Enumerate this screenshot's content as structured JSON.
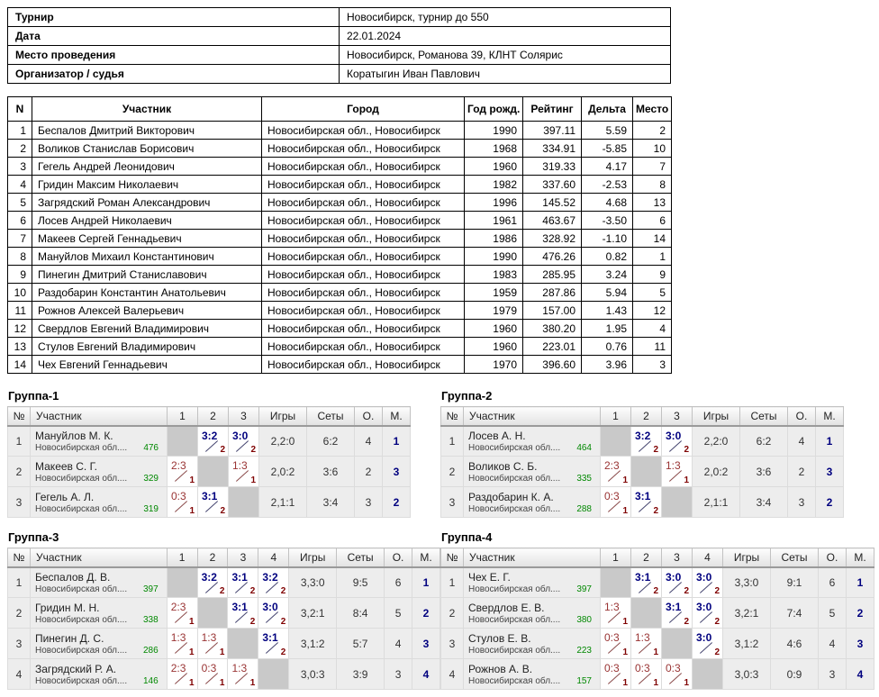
{
  "info": {
    "rows": [
      {
        "label": "Турнир",
        "value": "Новосибирск, турнир до 550"
      },
      {
        "label": "Дата",
        "value": "22.01.2024"
      },
      {
        "label": "Место проведения",
        "value": "Новосибирск, Романова 39, КЛНТ Солярис"
      },
      {
        "label": "Организатор / судья",
        "value": "Коратыгин Иван Павлович"
      }
    ]
  },
  "participants": {
    "headers": [
      "N",
      "Участник",
      "Город",
      "Год рожд.",
      "Рейтинг",
      "Дельта",
      "Место"
    ],
    "rows": [
      {
        "n": "1",
        "name": "Беспалов Дмитрий Викторович",
        "city": "Новосибирская обл., Новосибирск",
        "year": "1990",
        "rating": "397.11",
        "delta": "5.59",
        "place": "2"
      },
      {
        "n": "2",
        "name": "Воликов Станислав Борисович",
        "city": "Новосибирская обл., Новосибирск",
        "year": "1968",
        "rating": "334.91",
        "delta": "-5.85",
        "place": "10"
      },
      {
        "n": "3",
        "name": "Гегель Андрей Леонидович",
        "city": "Новосибирская обл., Новосибирск",
        "year": "1960",
        "rating": "319.33",
        "delta": "4.17",
        "place": "7"
      },
      {
        "n": "4",
        "name": "Гридин Максим Николаевич",
        "city": "Новосибирская обл., Новосибирск",
        "year": "1982",
        "rating": "337.60",
        "delta": "-2.53",
        "place": "8"
      },
      {
        "n": "5",
        "name": "Загрядский Роман Александрович",
        "city": "Новосибирская обл., Новосибирск",
        "year": "1996",
        "rating": "145.52",
        "delta": "4.68",
        "place": "13"
      },
      {
        "n": "6",
        "name": "Лосев Андрей Николаевич",
        "city": "Новосибирская обл., Новосибирск",
        "year": "1961",
        "rating": "463.67",
        "delta": "-3.50",
        "place": "6"
      },
      {
        "n": "7",
        "name": "Макеев Сергей Геннадьевич",
        "city": "Новосибирская обл., Новосибирск",
        "year": "1986",
        "rating": "328.92",
        "delta": "-1.10",
        "place": "14"
      },
      {
        "n": "8",
        "name": "Мануйлов Михаил Константинович",
        "city": "Новосибирская обл., Новосибирск",
        "year": "1990",
        "rating": "476.26",
        "delta": "0.82",
        "place": "1"
      },
      {
        "n": "9",
        "name": "Пинегин Дмитрий Станиславович",
        "city": "Новосибирская обл., Новосибирск",
        "year": "1983",
        "rating": "285.95",
        "delta": "3.24",
        "place": "9"
      },
      {
        "n": "10",
        "name": "Раздобарин Константин Анатольевич",
        "city": "Новосибирская обл., Новосибирск",
        "year": "1959",
        "rating": "287.86",
        "delta": "5.94",
        "place": "5"
      },
      {
        "n": "11",
        "name": "Рожнов Алексей Валерьевич",
        "city": "Новосибирская обл., Новосибирск",
        "year": "1979",
        "rating": "157.00",
        "delta": "1.43",
        "place": "12"
      },
      {
        "n": "12",
        "name": "Свердлов Евгений Владимирович",
        "city": "Новосибирская обл., Новосибирск",
        "year": "1960",
        "rating": "380.20",
        "delta": "1.95",
        "place": "4"
      },
      {
        "n": "13",
        "name": "Стулов Евгений Владимирович",
        "city": "Новосибирская обл., Новосибирск",
        "year": "1960",
        "rating": "223.01",
        "delta": "0.76",
        "place": "11"
      },
      {
        "n": "14",
        "name": "Чех Евгений Геннадьевич",
        "city": "Новосибирская обл., Новосибирск",
        "year": "1970",
        "rating": "396.60",
        "delta": "3.96",
        "place": "3"
      }
    ]
  },
  "group_headers": {
    "num": "№",
    "participant": "Участник",
    "games": "Игры",
    "sets": "Сеты",
    "points": "О.",
    "place": "М."
  },
  "groups": [
    {
      "title": "Группа-1",
      "rounds": [
        "1",
        "2",
        "3"
      ],
      "rows": [
        {
          "n": "1",
          "name": "Мануйлов М. К.",
          "region": "Новосибирская обл....",
          "rating": "476",
          "results": [
            {
              "self": true
            },
            {
              "score": "3:2",
              "delta": "2",
              "win": true
            },
            {
              "score": "3:0",
              "delta": "2",
              "win": true
            }
          ],
          "games": "2,2:0",
          "sets": "6:2",
          "points": "4",
          "place": "1"
        },
        {
          "n": "2",
          "name": "Макеев С. Г.",
          "region": "Новосибирская обл....",
          "rating": "329",
          "results": [
            {
              "score": "2:3",
              "delta": "1",
              "win": false
            },
            {
              "self": true
            },
            {
              "score": "1:3",
              "delta": "1",
              "win": false
            }
          ],
          "games": "2,0:2",
          "sets": "3:6",
          "points": "2",
          "place": "3"
        },
        {
          "n": "3",
          "name": "Гегель А. Л.",
          "region": "Новосибирская обл....",
          "rating": "319",
          "results": [
            {
              "score": "0:3",
              "delta": "1",
              "win": false
            },
            {
              "score": "3:1",
              "delta": "2",
              "win": true
            },
            {
              "self": true
            }
          ],
          "games": "2,1:1",
          "sets": "3:4",
          "points": "3",
          "place": "2"
        }
      ]
    },
    {
      "title": "Группа-2",
      "rounds": [
        "1",
        "2",
        "3"
      ],
      "rows": [
        {
          "n": "1",
          "name": "Лосев А. Н.",
          "region": "Новосибирская обл....",
          "rating": "464",
          "results": [
            {
              "self": true
            },
            {
              "score": "3:2",
              "delta": "2",
              "win": true
            },
            {
              "score": "3:0",
              "delta": "2",
              "win": true
            }
          ],
          "games": "2,2:0",
          "sets": "6:2",
          "points": "4",
          "place": "1"
        },
        {
          "n": "2",
          "name": "Воликов С. Б.",
          "region": "Новосибирская обл....",
          "rating": "335",
          "results": [
            {
              "score": "2:3",
              "delta": "1",
              "win": false
            },
            {
              "self": true
            },
            {
              "score": "1:3",
              "delta": "1",
              "win": false
            }
          ],
          "games": "2,0:2",
          "sets": "3:6",
          "points": "2",
          "place": "3"
        },
        {
          "n": "3",
          "name": "Раздобарин К. А.",
          "region": "Новосибирская обл....",
          "rating": "288",
          "results": [
            {
              "score": "0:3",
              "delta": "1",
              "win": false
            },
            {
              "score": "3:1",
              "delta": "2",
              "win": true
            },
            {
              "self": true
            }
          ],
          "games": "2,1:1",
          "sets": "3:4",
          "points": "3",
          "place": "2"
        }
      ]
    },
    {
      "title": "Группа-3",
      "rounds": [
        "1",
        "2",
        "3",
        "4"
      ],
      "rows": [
        {
          "n": "1",
          "name": "Беспалов Д. В.",
          "region": "Новосибирская обл....",
          "rating": "397",
          "results": [
            {
              "self": true
            },
            {
              "score": "3:2",
              "delta": "2",
              "win": true
            },
            {
              "score": "3:1",
              "delta": "2",
              "win": true
            },
            {
              "score": "3:2",
              "delta": "2",
              "win": true
            }
          ],
          "games": "3,3:0",
          "sets": "9:5",
          "points": "6",
          "place": "1"
        },
        {
          "n": "2",
          "name": "Гридин М. Н.",
          "region": "Новосибирская обл....",
          "rating": "338",
          "results": [
            {
              "score": "2:3",
              "delta": "1",
              "win": false
            },
            {
              "self": true
            },
            {
              "score": "3:1",
              "delta": "2",
              "win": true
            },
            {
              "score": "3:0",
              "delta": "2",
              "win": true
            }
          ],
          "games": "3,2:1",
          "sets": "8:4",
          "points": "5",
          "place": "2"
        },
        {
          "n": "3",
          "name": "Пинегин Д. С.",
          "region": "Новосибирская обл....",
          "rating": "286",
          "results": [
            {
              "score": "1:3",
              "delta": "1",
              "win": false
            },
            {
              "score": "1:3",
              "delta": "1",
              "win": false
            },
            {
              "self": true
            },
            {
              "score": "3:1",
              "delta": "2",
              "win": true
            }
          ],
          "games": "3,1:2",
          "sets": "5:7",
          "points": "4",
          "place": "3"
        },
        {
          "n": "4",
          "name": "Загрядский Р. А.",
          "region": "Новосибирская обл....",
          "rating": "146",
          "results": [
            {
              "score": "2:3",
              "delta": "1",
              "win": false
            },
            {
              "score": "0:3",
              "delta": "1",
              "win": false
            },
            {
              "score": "1:3",
              "delta": "1",
              "win": false
            },
            {
              "self": true
            }
          ],
          "games": "3,0:3",
          "sets": "3:9",
          "points": "3",
          "place": "4"
        }
      ]
    },
    {
      "title": "Группа-4",
      "rounds": [
        "1",
        "2",
        "3",
        "4"
      ],
      "rows": [
        {
          "n": "1",
          "name": "Чех Е. Г.",
          "region": "Новосибирская обл....",
          "rating": "397",
          "results": [
            {
              "self": true
            },
            {
              "score": "3:1",
              "delta": "2",
              "win": true
            },
            {
              "score": "3:0",
              "delta": "2",
              "win": true
            },
            {
              "score": "3:0",
              "delta": "2",
              "win": true
            }
          ],
          "games": "3,3:0",
          "sets": "9:1",
          "points": "6",
          "place": "1"
        },
        {
          "n": "2",
          "name": "Свердлов Е. В.",
          "region": "Новосибирская обл....",
          "rating": "380",
          "results": [
            {
              "score": "1:3",
              "delta": "1",
              "win": false
            },
            {
              "self": true
            },
            {
              "score": "3:1",
              "delta": "2",
              "win": true
            },
            {
              "score": "3:0",
              "delta": "2",
              "win": true
            }
          ],
          "games": "3,2:1",
          "sets": "7:4",
          "points": "5",
          "place": "2"
        },
        {
          "n": "3",
          "name": "Стулов Е. В.",
          "region": "Новосибирская обл....",
          "rating": "223",
          "results": [
            {
              "score": "0:3",
              "delta": "1",
              "win": false
            },
            {
              "score": "1:3",
              "delta": "1",
              "win": false
            },
            {
              "self": true
            },
            {
              "score": "3:0",
              "delta": "2",
              "win": true
            }
          ],
          "games": "3,1:2",
          "sets": "4:6",
          "points": "4",
          "place": "3"
        },
        {
          "n": "4",
          "name": "Рожнов А. В.",
          "region": "Новосибирская обл....",
          "rating": "157",
          "results": [
            {
              "score": "0:3",
              "delta": "1",
              "win": false
            },
            {
              "score": "0:3",
              "delta": "1",
              "win": false
            },
            {
              "score": "0:3",
              "delta": "1",
              "win": false
            },
            {
              "self": true
            }
          ],
          "games": "3,0:3",
          "sets": "0:9",
          "points": "3",
          "place": "4"
        }
      ]
    }
  ],
  "colors": {
    "win_score": "#00007f",
    "loss_score": "#993333",
    "match_points": "#7f0000",
    "rating_green": "#008800",
    "place_navy": "#00007f",
    "self_cell_grey": "#c9c9c9"
  }
}
